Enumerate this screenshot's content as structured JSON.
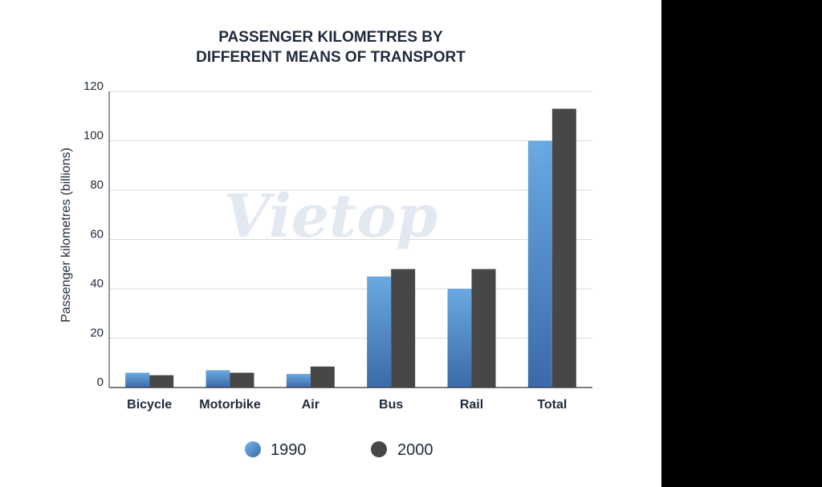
{
  "chart_data": {
    "type": "bar",
    "title_lines": [
      "PASSENGER KILOMETRES BY",
      "DIFFERENT MEANS OF TRANSPORT"
    ],
    "xlabel": "",
    "ylabel": "Passenger kilometres (billions)",
    "ylim": [
      0,
      120
    ],
    "yticks": [
      0,
      20,
      40,
      60,
      80,
      100,
      120
    ],
    "grid": true,
    "legend_position": "bottom-center",
    "categories": [
      "Bicycle",
      "Motorbike",
      "Air",
      "Bus",
      "Rail",
      "Total"
    ],
    "series": [
      {
        "name": "1990",
        "color_top": "#6aa9e2",
        "color_bottom": "#3b6aa8",
        "values": [
          6,
          7,
          5.5,
          45,
          40,
          100
        ]
      },
      {
        "name": "2000",
        "color": "#474747",
        "values": [
          5,
          6,
          8.5,
          48,
          48,
          113
        ]
      }
    ],
    "watermark": "Vietop"
  }
}
